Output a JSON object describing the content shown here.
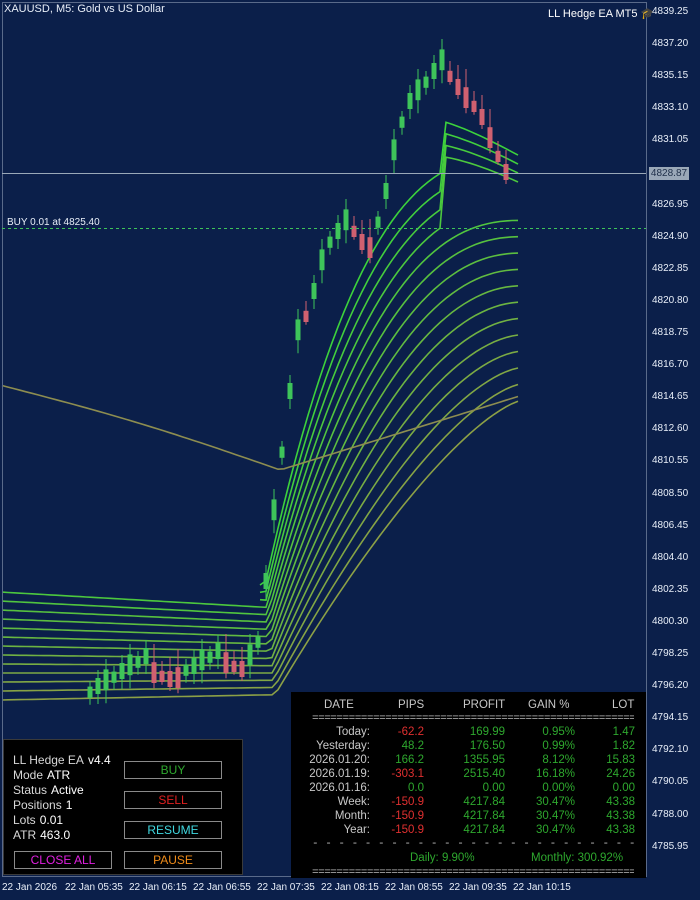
{
  "window": {
    "symbol_title": "XAUUSD, M5:  Gold vs US Dollar",
    "ea_title": "LL Hedge EA MT5",
    "ea_title_icon": "graduation-cap-icon"
  },
  "price_axis": {
    "ticks": [
      "4839.25",
      "4837.20",
      "4835.15",
      "4833.10",
      "4831.05",
      "4826.95",
      "4824.90",
      "4822.85",
      "4820.80",
      "4818.75",
      "4816.70",
      "4814.65",
      "4812.60",
      "4810.55",
      "4808.50",
      "4806.45",
      "4804.40",
      "4802.35",
      "4800.30",
      "4798.25",
      "4796.20",
      "4794.15",
      "4792.10",
      "4790.05",
      "4788.00",
      "4785.95"
    ],
    "current_price": "4828.87"
  },
  "time_axis": {
    "ticks": [
      "22 Jan 2026",
      "22 Jan 05:35",
      "22 Jan 06:15",
      "22 Jan 06:55",
      "22 Jan 07:35",
      "22 Jan 08:15",
      "22 Jan 08:55",
      "22 Jan 09:35",
      "22 Jan 10:15"
    ]
  },
  "buy_line": {
    "label": "BUY 0.01 at 4825.40"
  },
  "ea_panel": {
    "name": "LL Hedge EA",
    "version": "v4.4",
    "mode_label": "Mode",
    "mode_value": "ATR",
    "status_label": "Status",
    "status_value": "Active",
    "positions_label": "Positions",
    "positions_value": "1",
    "lots_label": "Lots",
    "lots_value": "0.01",
    "atr_label": "ATR",
    "atr_value": "463.0",
    "buttons": {
      "buy": "BUY",
      "sell": "SELL",
      "resume": "RESUME",
      "close_all": "CLOSE ALL",
      "pause": "PAUSE"
    },
    "colors": {
      "buy": "#2ea82e",
      "sell": "#e02020",
      "resume": "#40d8e0",
      "close_all": "#e020e0",
      "pause": "#f08c1a"
    }
  },
  "stats_panel": {
    "headers": [
      "DATE",
      "PIPS",
      "PROFIT",
      "GAIN %",
      "LOT"
    ],
    "rows": [
      {
        "date": "Today:",
        "pips": "-62.2",
        "profit": "169.99",
        "gain": "0.95%",
        "lot": "1.47"
      },
      {
        "date": "Yesterday:",
        "pips": "48.2",
        "profit": "176.50",
        "gain": "0.99%",
        "lot": "1.82"
      },
      {
        "date": "2026.01.20:",
        "pips": "166.2",
        "profit": "1355.95",
        "gain": "8.12%",
        "lot": "15.83"
      },
      {
        "date": "2026.01.19:",
        "pips": "-303.1",
        "profit": "2515.40",
        "gain": "16.18%",
        "lot": "24.26"
      },
      {
        "date": "2026.01.16:",
        "pips": "0.0",
        "profit": "0.00",
        "gain": "0.00%",
        "lot": "0.00"
      },
      {
        "date": "Week:",
        "pips": "-150.9",
        "profit": "4217.84",
        "gain": "30.47%",
        "lot": "43.38"
      },
      {
        "date": "Month:",
        "pips": "-150.9",
        "profit": "4217.84",
        "gain": "30.47%",
        "lot": "43.38"
      },
      {
        "date": "Year:",
        "pips": "-150.9",
        "profit": "4217.84",
        "gain": "30.47%",
        "lot": "43.38"
      }
    ],
    "daily": "Daily: 9.90%",
    "monthly": "Monthly: 300.92%",
    "separator": "=====================================================",
    "dash_separator": "- - - - - - - - - - - - - - - - - - - - - - - - - - - - - - - - - - - - - - -",
    "colors": {
      "positive": "#2ea82e",
      "negative": "#e03030",
      "neutral": "#c8c8c8"
    }
  }
}
